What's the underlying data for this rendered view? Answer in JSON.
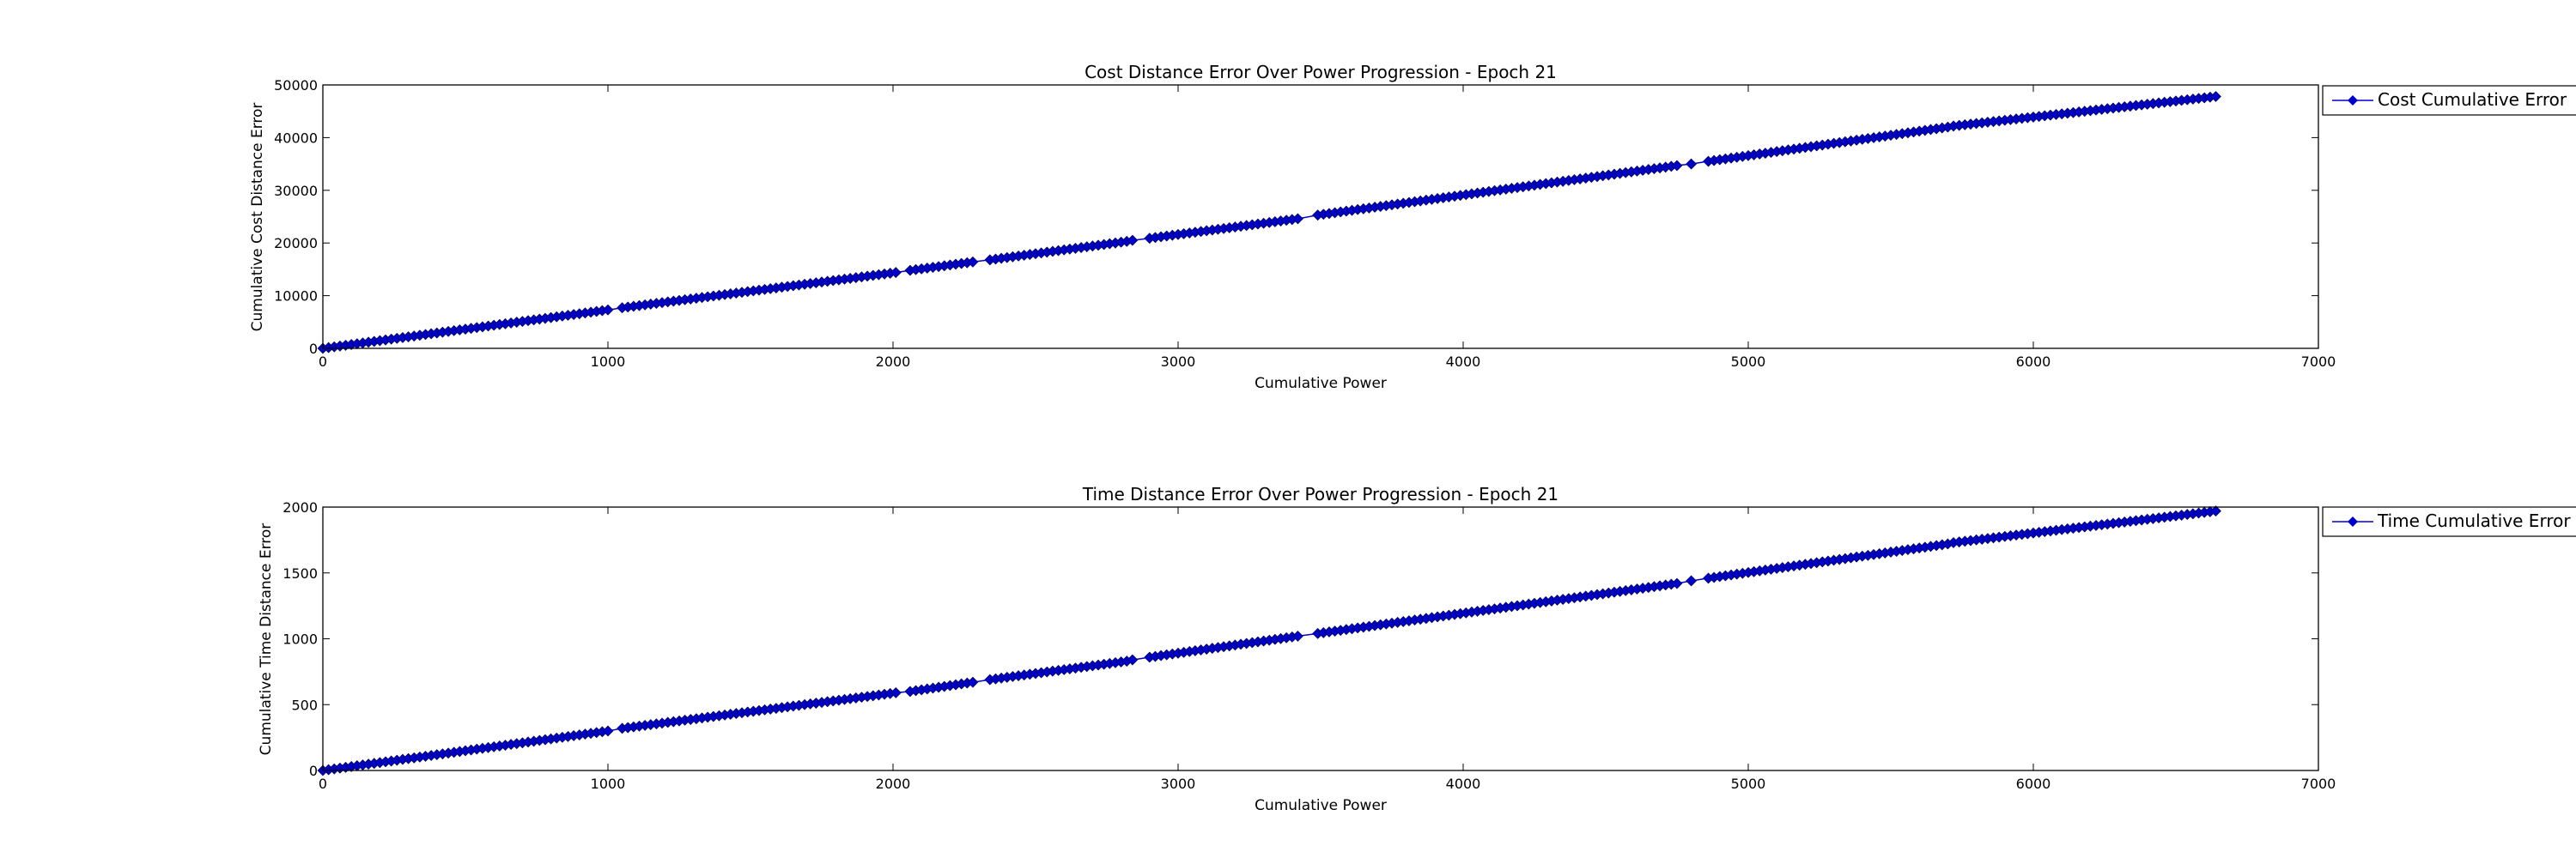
{
  "chart_data": [
    {
      "type": "line",
      "title": "Cost Distance Error Over Power Progression - Epoch 21",
      "xlabel": "Cumulative Power",
      "ylabel": "Cumulative Cost Distance Error",
      "xlim": [
        0,
        7000
      ],
      "ylim": [
        0,
        50000
      ],
      "xticks": [
        0,
        1000,
        2000,
        3000,
        4000,
        5000,
        6000,
        7000
      ],
      "yticks": [
        0,
        10000,
        20000,
        30000,
        40000,
        50000
      ],
      "grid": false,
      "legend_position": "outside-right-top",
      "series": [
        {
          "name": "Cost Cumulative Error",
          "color": "#0000cc",
          "marker": "diamond",
          "segments": [
            {
              "x_start": 0,
              "x_end": 1000,
              "step": 20,
              "start_value": 0,
              "end_value": 7300
            },
            {
              "x_start": 1050,
              "x_end": 2000,
              "step": 20,
              "start_value": 7700,
              "end_value": 14400
            },
            {
              "x_start": 2060,
              "x_end": 2270,
              "step": 20,
              "start_value": 14800,
              "end_value": 16400
            },
            {
              "x_start": 2340,
              "x_end": 2820,
              "step": 20,
              "start_value": 16800,
              "end_value": 20300
            },
            {
              "x_start": 2840,
              "x_end": 2840,
              "step": 20,
              "start_value": 20500,
              "end_value": 20500
            },
            {
              "x_start": 2900,
              "x_end": 3410,
              "step": 20,
              "start_value": 20900,
              "end_value": 24600
            },
            {
              "x_start": 3490,
              "x_end": 4750,
              "step": 20,
              "start_value": 25300,
              "end_value": 34700
            },
            {
              "x_start": 4800,
              "x_end": 4800,
              "step": 20,
              "start_value": 35000,
              "end_value": 35000
            },
            {
              "x_start": 4860,
              "x_end": 5700,
              "step": 20,
              "start_value": 35500,
              "end_value": 42000
            },
            {
              "x_start": 5720,
              "x_end": 6640,
              "step": 20,
              "start_value": 42200,
              "end_value": 47800
            }
          ]
        }
      ]
    },
    {
      "type": "line",
      "title": "Time Distance Error Over Power Progression - Epoch 21",
      "xlabel": "Cumulative Power",
      "ylabel": "Cumulative Time Distance Error",
      "xlim": [
        0,
        7000
      ],
      "ylim": [
        0,
        2000
      ],
      "xticks": [
        0,
        1000,
        2000,
        3000,
        4000,
        5000,
        6000,
        7000
      ],
      "yticks": [
        0,
        500,
        1000,
        1500,
        2000
      ],
      "grid": false,
      "legend_position": "outside-right-top",
      "series": [
        {
          "name": "Time Cumulative Error",
          "color": "#0000cc",
          "marker": "diamond",
          "segments": [
            {
              "x_start": 0,
              "x_end": 1000,
              "step": 20,
              "start_value": 0,
              "end_value": 300
            },
            {
              "x_start": 1050,
              "x_end": 2000,
              "step": 20,
              "start_value": 320,
              "end_value": 590
            },
            {
              "x_start": 2060,
              "x_end": 2270,
              "step": 20,
              "start_value": 600,
              "end_value": 670
            },
            {
              "x_start": 2340,
              "x_end": 2820,
              "step": 20,
              "start_value": 690,
              "end_value": 830
            },
            {
              "x_start": 2840,
              "x_end": 2840,
              "step": 20,
              "start_value": 840,
              "end_value": 840
            },
            {
              "x_start": 2900,
              "x_end": 3410,
              "step": 20,
              "start_value": 860,
              "end_value": 1020
            },
            {
              "x_start": 3490,
              "x_end": 4750,
              "step": 20,
              "start_value": 1040,
              "end_value": 1420
            },
            {
              "x_start": 4800,
              "x_end": 4800,
              "step": 20,
              "start_value": 1440,
              "end_value": 1440
            },
            {
              "x_start": 4860,
              "x_end": 5700,
              "step": 20,
              "start_value": 1460,
              "end_value": 1720
            },
            {
              "x_start": 5720,
              "x_end": 6640,
              "step": 20,
              "start_value": 1730,
              "end_value": 1970
            }
          ]
        }
      ]
    }
  ]
}
